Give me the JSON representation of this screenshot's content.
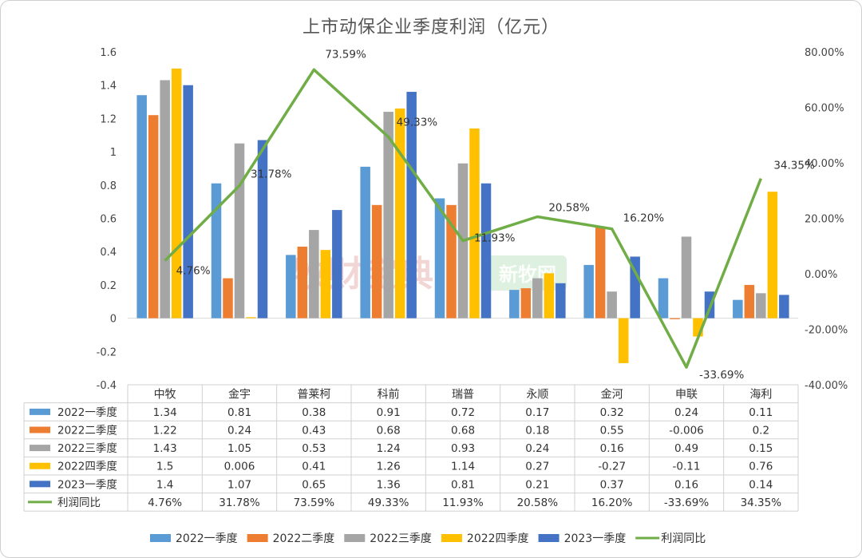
{
  "chart_data": {
    "type": "bar",
    "title": "上市动保企业季度利润（亿元）",
    "categories": [
      "中牧",
      "金宇",
      "普莱柯",
      "科前",
      "瑞普",
      "永顺",
      "金河",
      "申联",
      "海利"
    ],
    "series": [
      {
        "name": "2022一季度",
        "type": "bar",
        "axis": "left",
        "color": "#5B9BD5",
        "values": [
          1.34,
          0.81,
          0.38,
          0.91,
          0.72,
          0.17,
          0.32,
          0.24,
          0.11
        ],
        "labels": [
          "1.34",
          "0.81",
          "0.38",
          "0.91",
          "0.72",
          "0.17",
          "0.32",
          "0.24",
          "0.11"
        ]
      },
      {
        "name": "2022二季度",
        "type": "bar",
        "axis": "left",
        "color": "#ED7D31",
        "values": [
          1.22,
          0.24,
          0.43,
          0.68,
          0.68,
          0.18,
          0.55,
          -0.006,
          0.2
        ],
        "labels": [
          "1.22",
          "0.24",
          "0.43",
          "0.68",
          "0.68",
          "0.18",
          "0.55",
          "-0.006",
          "0.2"
        ]
      },
      {
        "name": "2022三季度",
        "type": "bar",
        "axis": "left",
        "color": "#A5A5A5",
        "values": [
          1.43,
          1.05,
          0.53,
          1.24,
          0.93,
          0.24,
          0.16,
          0.49,
          0.15
        ],
        "labels": [
          "1.43",
          "1.05",
          "0.53",
          "1.24",
          "0.93",
          "0.24",
          "0.16",
          "0.49",
          "0.15"
        ]
      },
      {
        "name": "2022四季度",
        "type": "bar",
        "axis": "left",
        "color": "#FFC000",
        "values": [
          1.5,
          0.006,
          0.41,
          1.26,
          1.14,
          0.27,
          -0.27,
          -0.11,
          0.76
        ],
        "labels": [
          "1.5",
          "0.006",
          "0.41",
          "1.26",
          "1.14",
          "0.27",
          "-0.27",
          "-0.11",
          "0.76"
        ]
      },
      {
        "name": "2023一季度",
        "type": "bar",
        "axis": "left",
        "color": "#4472C4",
        "values": [
          1.4,
          1.07,
          0.65,
          1.36,
          0.81,
          0.21,
          0.37,
          0.16,
          0.14
        ],
        "labels": [
          "1.4",
          "1.07",
          "0.65",
          "1.36",
          "0.81",
          "0.21",
          "0.37",
          "0.16",
          "0.14"
        ]
      },
      {
        "name": "利润同比",
        "type": "line",
        "axis": "right",
        "color": "#70AD47",
        "values": [
          4.76,
          31.78,
          73.59,
          49.33,
          11.93,
          20.58,
          16.2,
          -33.69,
          34.35
        ],
        "labels": [
          "4.76%",
          "31.78%",
          "73.59%",
          "49.33%",
          "11.93%",
          "20.58%",
          "16.20%",
          "-33.69%",
          "34.35%"
        ]
      }
    ],
    "y_left": {
      "min": -0.4,
      "max": 1.6,
      "step": 0.2,
      "ticks": [
        "-0.4",
        "-0.2",
        "0",
        "0.2",
        "0.4",
        "0.6",
        "0.8",
        "1",
        "1.2",
        "1.4",
        "1.6"
      ]
    },
    "y_right": {
      "min": -40,
      "max": 80,
      "step": 20,
      "ticks": [
        "-40.00%",
        "-20.00%",
        "0.00%",
        "20.00%",
        "40.00%",
        "60.00%",
        "80.00%"
      ]
    },
    "grid": false,
    "legend": "bottom",
    "data_table": true
  },
  "watermarks": [
    "牧财宝典",
    "新牧网"
  ]
}
